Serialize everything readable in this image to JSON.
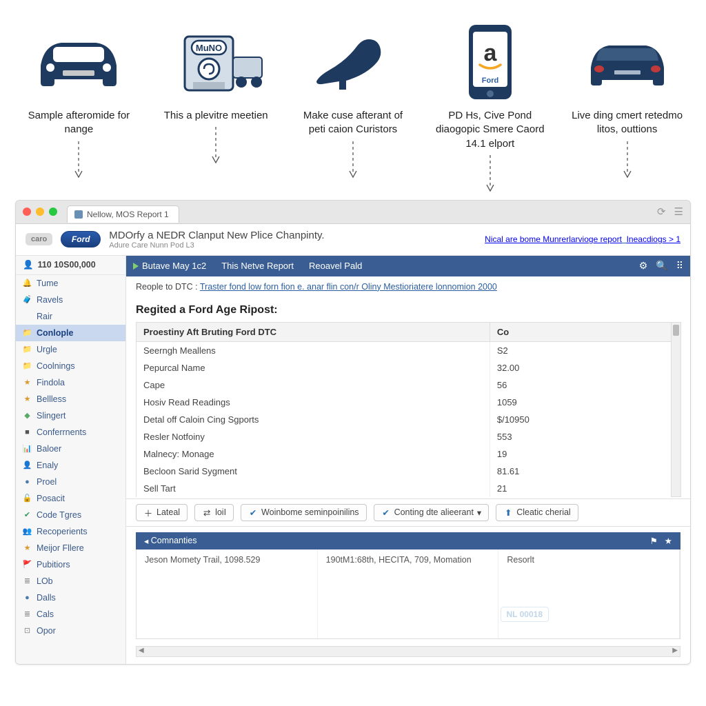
{
  "colors": {
    "navy": "#1f3a5f",
    "accent_blue": "#3a5e93",
    "link": "#2a5fa3",
    "chrome_bg": "#e7e7e7",
    "sidebar_bg": "#f7f7f7",
    "sidebar_active": "#c9d8ef"
  },
  "features": [
    {
      "label": "Sample afteromide for nange"
    },
    {
      "label": "This a plevitre meetien"
    },
    {
      "label": "Make cuse afterant of peti caion Curistors"
    },
    {
      "label": "PD Hs, Cive Pond diaogopic Smere Caord 14.1 elport"
    },
    {
      "label": "Live ding cmert retedmo litos, outtions"
    }
  ],
  "chrome": {
    "tab_title": "Nellow, MOS Report  1"
  },
  "header": {
    "left_badge": "caro",
    "logo_text": "Ford",
    "title": "MDOrfy a NEDR Clanput New Plice Chanpinty.",
    "subtitle": "Adure Care Nunn Pod L3",
    "link1": "Nical are bome Munrerlarvioge report",
    "link2": "Ineacdiogs > 1"
  },
  "sidebar": {
    "top_label": "110 10S00,000",
    "items": [
      {
        "icon": "🔔",
        "label": "Tume",
        "color": "#c94f3d"
      },
      {
        "icon": "🧳",
        "label": "Ravels",
        "color": "#c9a33d"
      },
      {
        "icon": " ",
        "label": "Rair",
        "color": "#888"
      },
      {
        "icon": "📁",
        "label": "Conlople",
        "color": "#3a5e93",
        "active": true
      },
      {
        "icon": "📁",
        "label": "Urgle",
        "color": "#888"
      },
      {
        "icon": "📁",
        "label": "Coolnings",
        "color": "#4a7ab0"
      },
      {
        "icon": "★",
        "label": "Findola",
        "color": "#d89a2e"
      },
      {
        "icon": "★",
        "label": "Bellless",
        "color": "#d89a2e"
      },
      {
        "icon": "◆",
        "label": "Slingert",
        "color": "#5aa96a"
      },
      {
        "icon": "■",
        "label": "Conferrnents",
        "color": "#555"
      },
      {
        "icon": "📊",
        "label": "Baloer",
        "color": "#3a7a4f"
      },
      {
        "icon": "👤",
        "label": "Enaly",
        "color": "#555"
      },
      {
        "icon": "●",
        "label": "Proel",
        "color": "#4a7ab0"
      },
      {
        "icon": "🔓",
        "label": "Posacit",
        "color": "#4a7ab0"
      },
      {
        "icon": "✔",
        "label": "Code Tgres",
        "color": "#2e9a5a"
      },
      {
        "icon": "👥",
        "label": "Recoperients",
        "color": "#555"
      },
      {
        "icon": "★",
        "label": "Meijor Fllere",
        "color": "#d89a2e"
      },
      {
        "icon": "🚩",
        "label": "Pubitiors",
        "color": "#2e9a5a"
      },
      {
        "icon": "≣",
        "label": "LOb",
        "color": "#888"
      },
      {
        "icon": "●",
        "label": "Dalls",
        "color": "#4a7ab0"
      },
      {
        "icon": "≣",
        "label": "Cals",
        "color": "#888"
      },
      {
        "icon": "⊡",
        "label": "Opor",
        "color": "#888"
      }
    ]
  },
  "bluebar": {
    "items": [
      "Butave May 1c2",
      "This Netve Report",
      "Reoavel Pald"
    ]
  },
  "crumb": {
    "prefix": "Reople to DTC :",
    "link": "Traster fond low forn fion e. anar flin con/r Oliny Mestioriatere lonnomion 2000"
  },
  "section_title": "Regited a Ford Age Ripost:",
  "table": {
    "headers": [
      "Proestiny Aft Bruting Ford DTC",
      "Co"
    ],
    "rows": [
      [
        "Seerngh Meallens",
        "S2"
      ],
      [
        "Pepurcal Name",
        "32.00"
      ],
      [
        "Cape",
        "56"
      ],
      [
        "Hosiv Read Readings",
        "1059"
      ],
      [
        "Detal off Caloin Cing Sgports",
        "$/10950"
      ],
      [
        "Resler Notfoiny",
        "553"
      ],
      [
        "Malnecy: Monage",
        "19"
      ],
      [
        "Becloon Sarid Sygment",
        "81.61"
      ],
      [
        "Sell Tart",
        "21"
      ]
    ]
  },
  "table_toolbar": {
    "b1": "Lateal",
    "b2": "loiI",
    "b3": "Woinbome seminpoinilins",
    "b4": "Conting dte alieerant",
    "b5": "Cleatic cherial"
  },
  "panel": {
    "title": "Comnanties",
    "col1": "Jeson Momety Trail, 1098.529",
    "col2": "190tM1:68th, HECITA, 709, Momation",
    "col3": "Resorlt",
    "watermark": "NL 00018"
  }
}
